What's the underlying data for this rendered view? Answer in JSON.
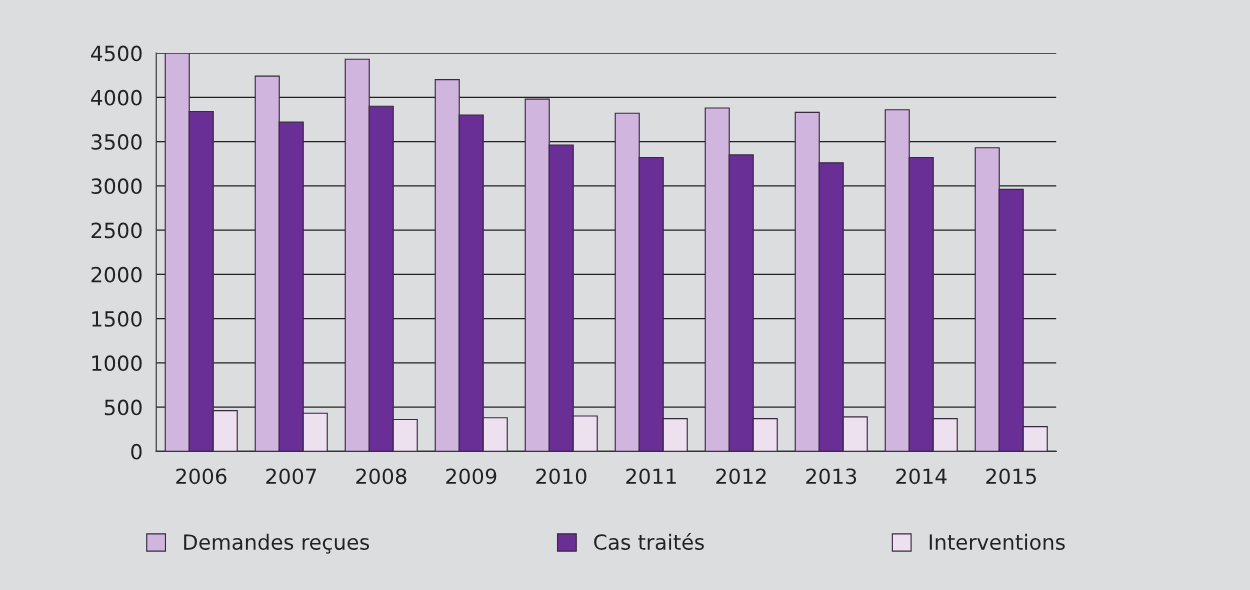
{
  "chart_data": {
    "type": "bar",
    "categories": [
      "2006",
      "2007",
      "2008",
      "2009",
      "2010",
      "2011",
      "2012",
      "2013",
      "2014",
      "2015"
    ],
    "series": [
      {
        "name": "Demandes reçues",
        "color": "#d0b6de",
        "values": [
          4500,
          4240,
          4430,
          4200,
          3980,
          3820,
          3880,
          3830,
          3860,
          3430
        ]
      },
      {
        "name": "Cas traités",
        "color": "#6a2f96",
        "values": [
          3840,
          3720,
          3900,
          3800,
          3460,
          3320,
          3350,
          3260,
          3320,
          2960
        ]
      },
      {
        "name": "Interventions",
        "color": "#ede0ef",
        "values": [
          460,
          430,
          360,
          380,
          400,
          370,
          370,
          390,
          370,
          280
        ]
      }
    ],
    "ylim": [
      0,
      4500
    ],
    "yticks": [
      0,
      500,
      1000,
      1500,
      2000,
      2500,
      3000,
      3500,
      4000,
      4500
    ],
    "grid": "y",
    "legend": "bottom"
  }
}
